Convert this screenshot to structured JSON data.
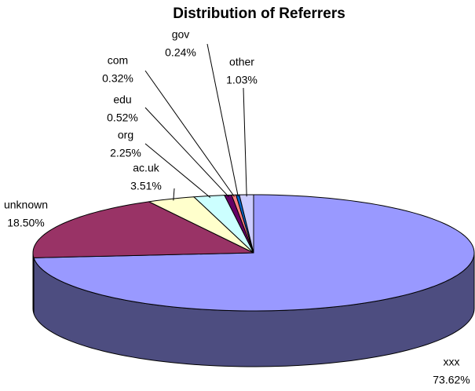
{
  "chart_data": {
    "type": "pie3d",
    "title": "Distribution of Referrers",
    "categories": [
      "xxx",
      "unknown",
      "ac.uk",
      "org",
      "edu",
      "com",
      "gov",
      "other"
    ],
    "values": [
      73.62,
      18.5,
      3.51,
      2.25,
      0.52,
      0.32,
      0.24,
      1.03
    ],
    "value_labels": [
      "73.62%",
      "18.50%",
      "3.51%",
      "2.25%",
      "0.52%",
      "0.32%",
      "0.24%",
      "1.03%"
    ],
    "colors": [
      "#9999ff",
      "#993366",
      "#ffffcc",
      "#ccffff",
      "#660066",
      "#ff8080",
      "#0066cc",
      "#ccccff"
    ]
  }
}
